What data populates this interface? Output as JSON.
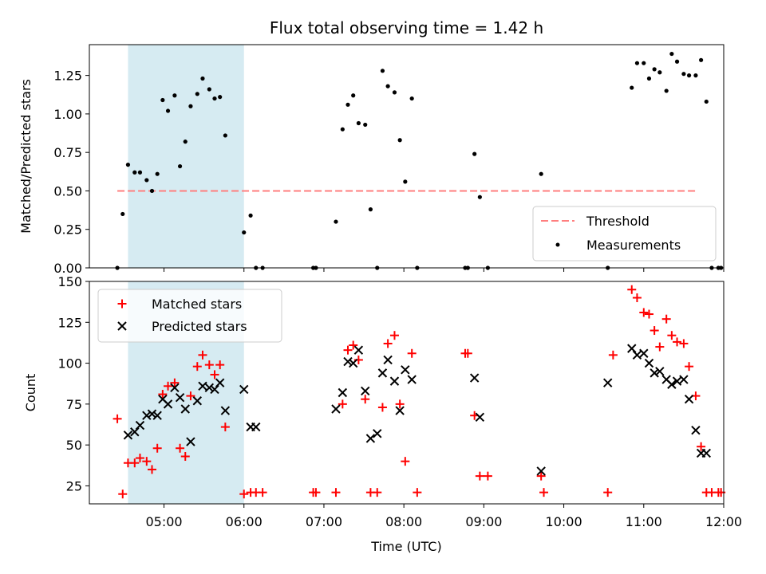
{
  "chart_data": [
    {
      "type": "scatter",
      "title": "Flux total observing time = 1.42 h",
      "ylabel": "Matched/Predicted stars",
      "xlabel": "",
      "xlim": [
        "04:04",
        "12:00"
      ],
      "ylim": [
        0,
        1.45
      ],
      "yticks": [
        "0.00",
        "0.25",
        "0.50",
        "0.75",
        "1.00",
        "1.25"
      ],
      "highlight_span": [
        "04:33",
        "06:00"
      ],
      "colors": {
        "threshold": "#ff7f7f",
        "measurements": "#000000",
        "span": "#add8e6"
      },
      "threshold": {
        "name": "Threshold",
        "value": 0.5,
        "x": [
          "04:25",
          "11:40"
        ]
      },
      "series": [
        {
          "name": "Measurements",
          "x": [
            "04:25",
            "04:29",
            "04:33",
            "04:38",
            "04:42",
            "04:47",
            "04:51",
            "04:55",
            "04:59",
            "05:03",
            "05:08",
            "05:12",
            "05:16",
            "05:20",
            "05:25",
            "05:29",
            "05:34",
            "05:38",
            "05:42",
            "05:46",
            "06:00",
            "06:05",
            "06:09",
            "06:14",
            "06:52",
            "06:54",
            "07:09",
            "07:14",
            "07:18",
            "07:22",
            "07:26",
            "07:31",
            "07:35",
            "07:40",
            "07:44",
            "07:48",
            "07:53",
            "07:57",
            "08:01",
            "08:06",
            "08:10",
            "08:46",
            "08:48",
            "08:53",
            "08:57",
            "09:03",
            "09:43",
            "10:33",
            "10:51",
            "10:55",
            "11:00",
            "11:04",
            "11:08",
            "11:12",
            "11:17",
            "11:21",
            "11:25",
            "11:30",
            "11:34",
            "11:39",
            "11:43",
            "11:47",
            "11:51",
            "11:56",
            "11:58"
          ],
          "y": [
            0.0,
            0.35,
            0.67,
            0.62,
            0.62,
            0.57,
            0.5,
            0.61,
            1.09,
            1.02,
            1.12,
            0.66,
            0.82,
            1.05,
            1.13,
            1.23,
            1.16,
            1.1,
            1.11,
            0.86,
            0.23,
            0.34,
            0.0,
            0.0,
            0.0,
            0.0,
            0.3,
            0.9,
            1.06,
            1.12,
            0.94,
            0.93,
            0.38,
            0.0,
            1.28,
            1.18,
            1.14,
            0.83,
            0.56,
            1.1,
            0.0,
            0.0,
            0.0,
            0.74,
            0.46,
            0.0,
            0.61,
            0.0,
            1.17,
            1.33,
            1.33,
            1.23,
            1.29,
            1.27,
            1.15,
            1.39,
            1.34,
            1.26,
            1.25,
            1.25,
            1.35,
            1.08,
            0.0,
            0.0,
            0.0
          ]
        }
      ]
    },
    {
      "type": "scatter",
      "title": "",
      "ylabel": "Count",
      "xlabel": "Time (UTC)",
      "xlim": [
        "04:04",
        "12:00"
      ],
      "xticks": [
        "05:00",
        "06:00",
        "07:00",
        "08:00",
        "09:00",
        "10:00",
        "11:00",
        "12:00"
      ],
      "ylim": [
        14,
        150
      ],
      "yticks": [
        "25",
        "50",
        "75",
        "100",
        "125",
        "150"
      ],
      "highlight_span": [
        "04:33",
        "06:00"
      ],
      "colors": {
        "matched": "#ff0000",
        "predicted": "#000000",
        "span": "#add8e6"
      },
      "series": [
        {
          "name": "Matched stars",
          "marker": "+",
          "x": [
            "04:25",
            "04:29",
            "04:33",
            "04:38",
            "04:42",
            "04:47",
            "04:51",
            "04:55",
            "04:59",
            "05:03",
            "05:08",
            "05:12",
            "05:16",
            "05:20",
            "05:25",
            "05:29",
            "05:34",
            "05:38",
            "05:42",
            "05:46",
            "06:00",
            "06:05",
            "06:09",
            "06:14",
            "06:52",
            "06:54",
            "07:09",
            "07:14",
            "07:18",
            "07:22",
            "07:26",
            "07:31",
            "07:35",
            "07:40",
            "07:44",
            "07:48",
            "07:53",
            "07:57",
            "08:01",
            "08:06",
            "08:10",
            "08:46",
            "08:48",
            "08:53",
            "08:57",
            "09:03",
            "09:43",
            "09:45",
            "10:33",
            "10:37",
            "10:51",
            "10:55",
            "11:00",
            "11:04",
            "11:08",
            "11:12",
            "11:17",
            "11:21",
            "11:25",
            "11:30",
            "11:34",
            "11:39",
            "11:43",
            "11:47",
            "11:51",
            "11:56",
            "11:58"
          ],
          "y": [
            66,
            20,
            39,
            39,
            42,
            40,
            35,
            48,
            81,
            86,
            88,
            48,
            43,
            80,
            98,
            105,
            99,
            93,
            99,
            61,
            20,
            21,
            21,
            21,
            21,
            21,
            21,
            75,
            108,
            111,
            102,
            78,
            21,
            21,
            73,
            112,
            117,
            75,
            40,
            106,
            21,
            106,
            106,
            68,
            31,
            31,
            31,
            21,
            21,
            105,
            145,
            140,
            131,
            130,
            120,
            110,
            127,
            117,
            113,
            112,
            98,
            80,
            49,
            21,
            21,
            21,
            21
          ],
          "x_note": ""
        },
        {
          "name": "Predicted stars",
          "marker": "x",
          "x": [
            "04:33",
            "04:38",
            "04:42",
            "04:47",
            "04:51",
            "04:55",
            "04:59",
            "05:03",
            "05:08",
            "05:12",
            "05:16",
            "05:20",
            "05:25",
            "05:29",
            "05:34",
            "05:38",
            "05:42",
            "05:46",
            "06:00",
            "06:05",
            "06:09",
            "07:09",
            "07:14",
            "07:18",
            "07:22",
            "07:26",
            "07:31",
            "07:35",
            "07:40",
            "07:44",
            "07:48",
            "07:53",
            "07:57",
            "08:01",
            "08:06",
            "08:53",
            "08:57",
            "09:43",
            "10:33",
            "10:51",
            "10:55",
            "11:00",
            "11:04",
            "11:08",
            "11:12",
            "11:17",
            "11:21",
            "11:25",
            "11:30",
            "11:34",
            "11:39",
            "11:43",
            "11:47"
          ],
          "y": [
            56,
            58,
            62,
            68,
            69,
            68,
            78,
            75,
            85,
            79,
            72,
            52,
            77,
            86,
            85,
            84,
            88,
            71,
            84,
            61,
            61,
            72,
            82,
            101,
            100,
            108,
            83,
            54,
            57,
            94,
            102,
            89,
            71,
            96,
            90,
            91,
            67,
            34,
            88,
            109,
            105,
            106,
            100,
            94,
            95,
            90,
            87,
            89,
            90,
            78,
            59,
            45,
            45
          ]
        }
      ]
    }
  ]
}
